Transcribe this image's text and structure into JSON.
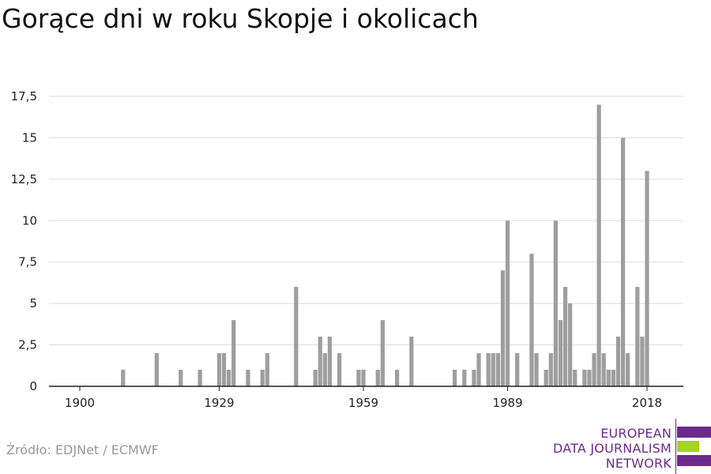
{
  "title": "Gorące dni w roku Skopje i okolicach",
  "source": "Źródło: EDJNet / ECMWF",
  "logo": {
    "lines": [
      "EUROPEAN",
      "DATA JOURNALISM",
      "NETWORK"
    ],
    "colors": {
      "text": "#6c2a8c",
      "bar_top": "#6c2a8c",
      "bar_middle": "#a5d128",
      "bar_bottom": "#6c2a8c",
      "rule": "#6c2a8c"
    }
  },
  "chart_data": {
    "type": "bar",
    "title": "Gorące dni w roku Skopje i okolicach",
    "xlabel": "",
    "ylabel": "",
    "x_range": [
      1900,
      2020
    ],
    "ylim": [
      0,
      17.5
    ],
    "y_ticks": [
      0,
      2.5,
      5,
      7.5,
      10,
      12.5,
      15,
      17.5
    ],
    "y_tick_labels": [
      "0",
      "2,5",
      "5",
      "7,5",
      "10",
      "12,5",
      "15",
      "17,5"
    ],
    "x_ticks": [
      1900,
      1929,
      1959,
      1989,
      2018
    ],
    "x_tick_labels": [
      "1900",
      "1929",
      "1959",
      "1989",
      "2018"
    ],
    "grid": true,
    "bar_color": "#9e9e9e",
    "points": [
      [
        1909,
        1
      ],
      [
        1916,
        2
      ],
      [
        1921,
        1
      ],
      [
        1925,
        1
      ],
      [
        1929,
        2
      ],
      [
        1930,
        2
      ],
      [
        1931,
        1
      ],
      [
        1932,
        4
      ],
      [
        1935,
        1
      ],
      [
        1938,
        1
      ],
      [
        1939,
        2
      ],
      [
        1945,
        6
      ],
      [
        1949,
        1
      ],
      [
        1950,
        3
      ],
      [
        1951,
        2
      ],
      [
        1952,
        3
      ],
      [
        1954,
        2
      ],
      [
        1958,
        1
      ],
      [
        1959,
        1
      ],
      [
        1962,
        1
      ],
      [
        1963,
        4
      ],
      [
        1966,
        1
      ],
      [
        1969,
        3
      ],
      [
        1978,
        1
      ],
      [
        1980,
        1
      ],
      [
        1982,
        1
      ],
      [
        1983,
        2
      ],
      [
        1985,
        2
      ],
      [
        1986,
        2
      ],
      [
        1987,
        2
      ],
      [
        1988,
        7
      ],
      [
        1989,
        10
      ],
      [
        1991,
        2
      ],
      [
        1994,
        8
      ],
      [
        1995,
        2
      ],
      [
        1997,
        1
      ],
      [
        1998,
        2
      ],
      [
        1999,
        10
      ],
      [
        2000,
        4
      ],
      [
        2001,
        6
      ],
      [
        2002,
        5
      ],
      [
        2003,
        1
      ],
      [
        2005,
        1
      ],
      [
        2006,
        1
      ],
      [
        2007,
        2
      ],
      [
        2008,
        17
      ],
      [
        2009,
        2
      ],
      [
        2010,
        1
      ],
      [
        2011,
        1
      ],
      [
        2012,
        3
      ],
      [
        2013,
        15
      ],
      [
        2014,
        2
      ],
      [
        2016,
        6
      ],
      [
        2017,
        3
      ],
      [
        2018,
        13
      ]
    ]
  }
}
